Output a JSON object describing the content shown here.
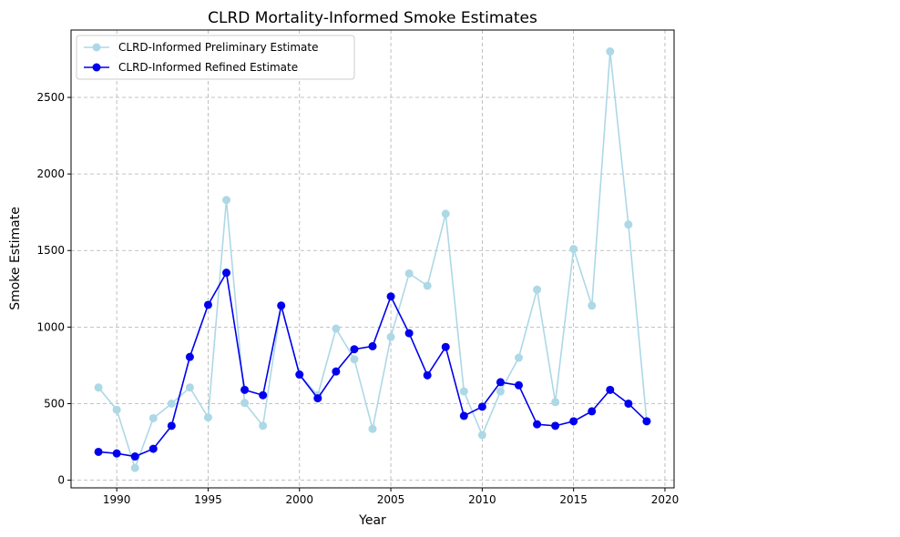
{
  "chart_data": {
    "type": "line",
    "title": "CLRD Mortality-Informed Smoke Estimates",
    "xlabel": "Year",
    "ylabel": "Smoke Estimate",
    "xlim": [
      1987.5,
      2020.5
    ],
    "ylim": [
      -50,
      2940
    ],
    "xticks": [
      1990,
      1995,
      2000,
      2005,
      2010,
      2015,
      2020
    ],
    "yticks": [
      0,
      500,
      1000,
      1500,
      2000,
      2500
    ],
    "grid": true,
    "legend_position": "top-left",
    "x": [
      1989,
      1990,
      1991,
      1992,
      1993,
      1994,
      1995,
      1996,
      1997,
      1998,
      1999,
      2000,
      2001,
      2002,
      2003,
      2004,
      2005,
      2006,
      2007,
      2008,
      2009,
      2010,
      2011,
      2012,
      2013,
      2014,
      2015,
      2016,
      2017,
      2018,
      2019
    ],
    "series": [
      {
        "name": "CLRD-Informed Preliminary Estimate",
        "color": "#add8e6",
        "values": [
          605,
          460,
          80,
          405,
          500,
          605,
          410,
          1830,
          505,
          355,
          1140,
          690,
          555,
          990,
          790,
          335,
          935,
          1350,
          1270,
          1740,
          580,
          295,
          580,
          800,
          1245,
          510,
          1510,
          1140,
          2800,
          1670,
          385
        ]
      },
      {
        "name": "CLRD-Informed Refined Estimate",
        "color": "#0000ee",
        "values": [
          185,
          175,
          155,
          205,
          355,
          805,
          1145,
          1355,
          590,
          555,
          1140,
          690,
          535,
          710,
          855,
          875,
          1200,
          960,
          685,
          870,
          420,
          480,
          640,
          620,
          365,
          355,
          385,
          450,
          590,
          500,
          385
        ]
      }
    ]
  }
}
